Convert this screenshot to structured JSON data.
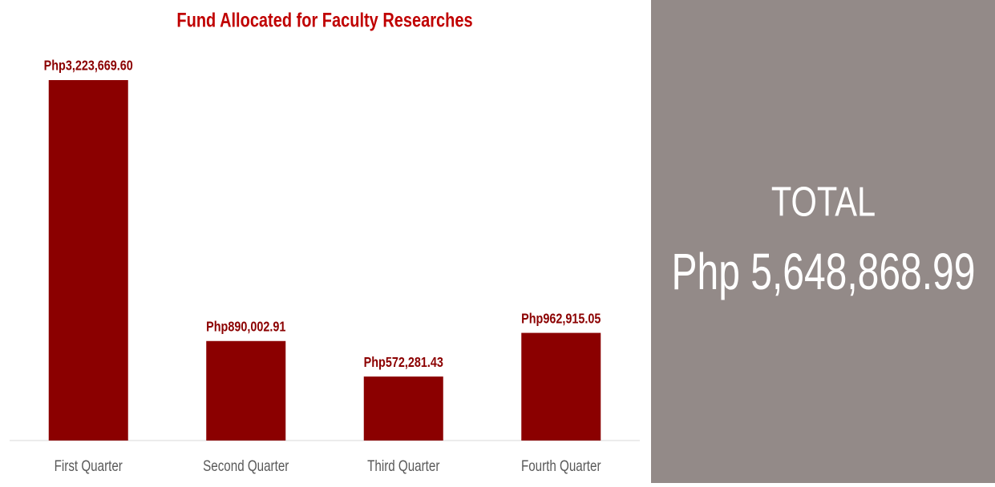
{
  "chart_data": {
    "type": "bar",
    "title": "Fund Allocated for Faculty Researches",
    "categories": [
      "First Quarter",
      "Second Quarter",
      "Third Quarter",
      "Fourth Quarter"
    ],
    "values": [
      3223669.6,
      890002.91,
      572281.43,
      962915.05
    ],
    "value_labels": [
      "Php3,223,669.60",
      "Php890,002.91",
      "Php572,281.43",
      "Php962,915.05"
    ],
    "color": "#8b0000",
    "ylim": [
      0,
      3500000
    ],
    "total_label": "TOTAL",
    "total": "Php 5,648,868.99"
  }
}
